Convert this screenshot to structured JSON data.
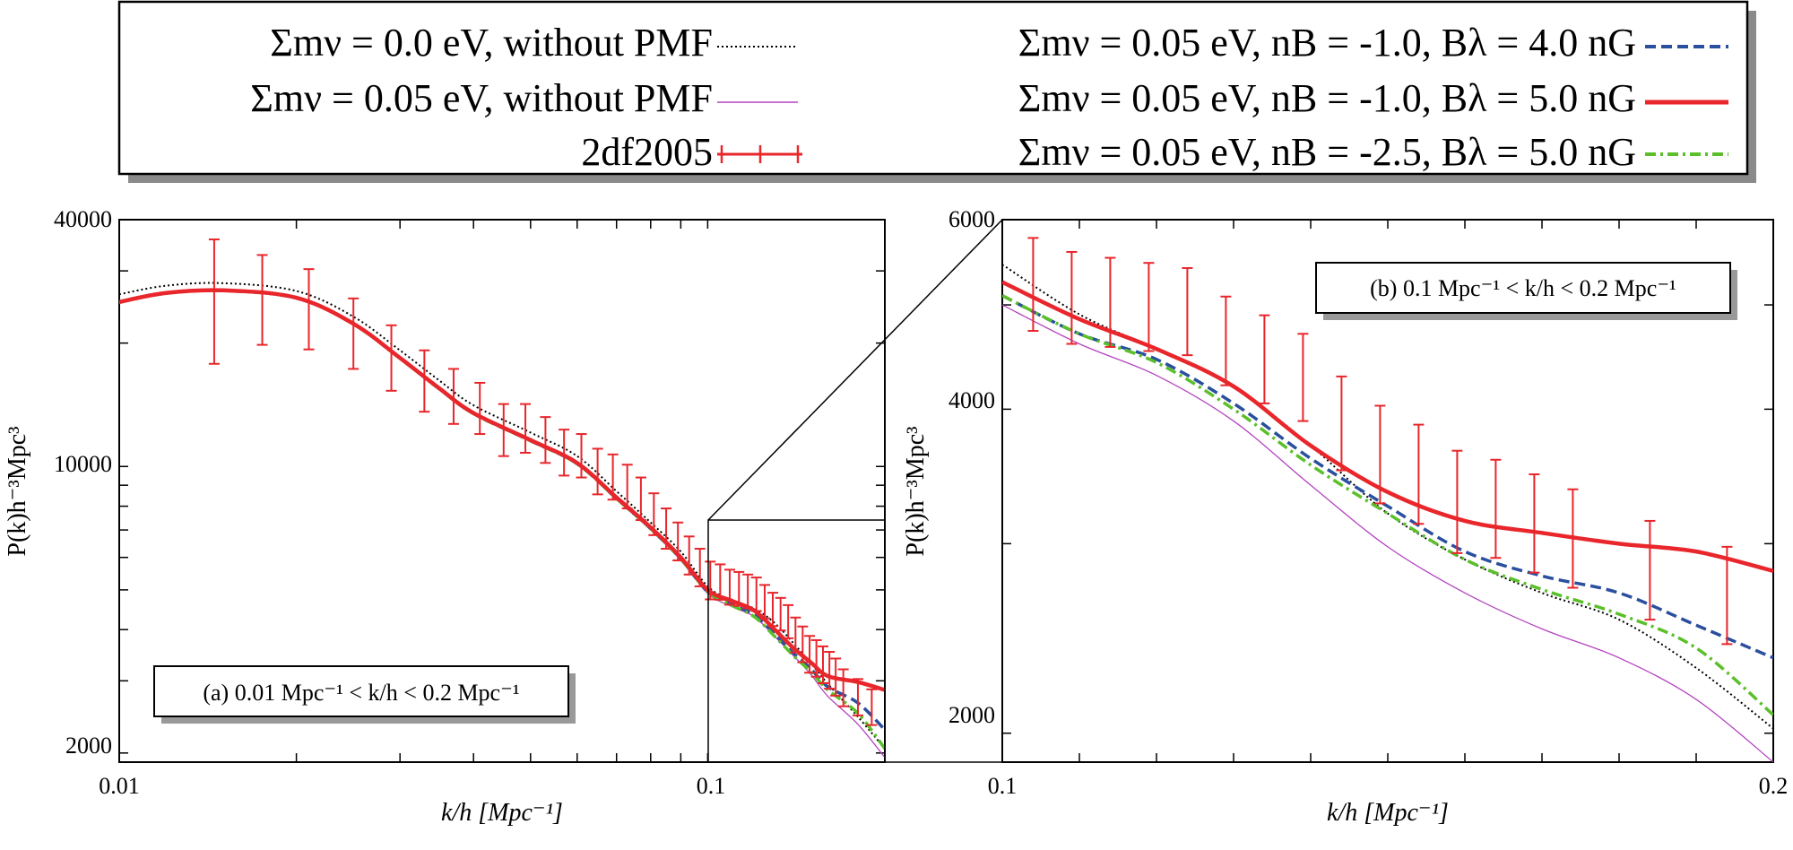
{
  "legend": {
    "placement": "top",
    "entries": [
      {
        "label": "Σmν = 0.0 eV, without PMF",
        "color": "#000000",
        "style": "dotted"
      },
      {
        "label": "Σmν = 0.05 eV, without PMF",
        "color": "#b444c0",
        "style": "thin-solid"
      },
      {
        "label": "2df2005",
        "color": "#e8262b",
        "style": "errorbar"
      },
      {
        "label": "Σmν = 0.05 eV, nB = -1.0, Bλ = 4.0 nG",
        "color": "#2a4f9e",
        "style": "dashed"
      },
      {
        "label": "Σmν = 0.05 eV, nB = -1.0, Bλ = 5.0 nG",
        "color": "#e8262b",
        "style": "thick-solid"
      },
      {
        "label": "Σmν = 0.05 eV, nB = -2.5, Bλ = 5.0 nG",
        "color": "#5bbf2a",
        "style": "dash-dot"
      }
    ]
  },
  "panels": [
    {
      "annotation": "(a) 0.01 Mpc⁻¹ < k/h < 0.2 Mpc⁻¹",
      "xlabel": "k/h [Mpc⁻¹]",
      "ylabel": "P(k)h⁻³Mpc³",
      "x_ticks": [
        "0.01",
        "0.1"
      ],
      "y_ticks": [
        "40000",
        "10000",
        "2000"
      ]
    },
    {
      "annotation": "(b) 0.1 Mpc⁻¹ < k/h < 0.2 Mpc⁻¹",
      "xlabel": "k/h [Mpc⁻¹]",
      "ylabel": "P(k)h⁻³Mpc³",
      "x_ticks": [
        "0.1",
        "0.2"
      ],
      "y_ticks": [
        "6000",
        "4000",
        "2000"
      ]
    }
  ],
  "chart_data": [
    {
      "type": "line",
      "xscale": "log",
      "yscale": "log",
      "xlim": [
        0.01,
        0.2
      ],
      "ylim": [
        1900,
        40000
      ],
      "series": [
        {
          "name": "Σmν = 0.0 eV, without PMF",
          "color": "#000000",
          "x": [
            0.01,
            0.012,
            0.015,
            0.02,
            0.025,
            0.03,
            0.035,
            0.04,
            0.05,
            0.06,
            0.07,
            0.08,
            0.09,
            0.1,
            0.11,
            0.12,
            0.13,
            0.14,
            0.15,
            0.16,
            0.18,
            0.2
          ],
          "y": [
            26300,
            27600,
            28000,
            26800,
            23200,
            19200,
            16200,
            14100,
            12100,
            10600,
            8700,
            7300,
            6200,
            5100,
            4700,
            4500,
            4150,
            3700,
            3300,
            2950,
            2450,
            2050
          ]
        },
        {
          "name": "Σmν = 0.05 eV, without PMF",
          "color": "#b444c0",
          "x": [
            0.01,
            0.012,
            0.015,
            0.02,
            0.025,
            0.03,
            0.035,
            0.04,
            0.05,
            0.06,
            0.07,
            0.08,
            0.09,
            0.1,
            0.11,
            0.12,
            0.13,
            0.14,
            0.15,
            0.16,
            0.18,
            0.2
          ],
          "y": [
            25100,
            26400,
            26800,
            25700,
            22200,
            18300,
            15400,
            13400,
            11500,
            10100,
            8300,
            7000,
            5900,
            4900,
            4550,
            4300,
            3850,
            3450,
            3100,
            2750,
            2350,
            1950
          ]
        },
        {
          "name": "Σmν = 0.05 eV, nB = -1.0, Bλ = 4.0 nG",
          "color": "#2a4f9e",
          "x": [
            0.01,
            0.012,
            0.015,
            0.02,
            0.025,
            0.03,
            0.035,
            0.04,
            0.05,
            0.06,
            0.07,
            0.08,
            0.09,
            0.1,
            0.11,
            0.12,
            0.13,
            0.14,
            0.15,
            0.16,
            0.18,
            0.2
          ],
          "y": [
            25150,
            26450,
            26850,
            25750,
            22250,
            18350,
            15450,
            13450,
            11550,
            10150,
            8350,
            7050,
            5950,
            4950,
            4600,
            4350,
            3900,
            3500,
            3200,
            2900,
            2650,
            2280
          ]
        },
        {
          "name": "Σmν = 0.05 eV, nB = -1.0, Bλ = 5.0 nG",
          "color": "#e8262b",
          "x": [
            0.01,
            0.012,
            0.015,
            0.02,
            0.025,
            0.03,
            0.035,
            0.04,
            0.05,
            0.06,
            0.07,
            0.08,
            0.09,
            0.1,
            0.11,
            0.12,
            0.13,
            0.14,
            0.15,
            0.16,
            0.18,
            0.2
          ],
          "y": [
            25200,
            26500,
            26900,
            25800,
            22300,
            18400,
            15500,
            13500,
            11600,
            10200,
            8400,
            7100,
            6000,
            5000,
            4700,
            4450,
            4000,
            3600,
            3320,
            3080,
            2980,
            2850
          ]
        },
        {
          "name": "Σmν = 0.05 eV, nB = -2.5, Bλ = 5.0 nG",
          "color": "#5bbf2a",
          "x": [
            0.01,
            0.012,
            0.015,
            0.02,
            0.025,
            0.03,
            0.035,
            0.04,
            0.05,
            0.06,
            0.07,
            0.08,
            0.09,
            0.1,
            0.11,
            0.12,
            0.13,
            0.14,
            0.15,
            0.16,
            0.18,
            0.2
          ],
          "y": [
            25150,
            26450,
            26850,
            25750,
            22250,
            18350,
            15450,
            13450,
            11550,
            10150,
            8350,
            7050,
            5950,
            4950,
            4580,
            4300,
            3850,
            3450,
            3150,
            2850,
            2500,
            2050
          ]
        },
        {
          "name": "2df2005",
          "color": "#e8262b",
          "type": "errorbar",
          "x": [
            0.0145,
            0.0175,
            0.021,
            0.025,
            0.029,
            0.033,
            0.037,
            0.041,
            0.045,
            0.049,
            0.053,
            0.057,
            0.061,
            0.065,
            0.069,
            0.073,
            0.077,
            0.081,
            0.085,
            0.089,
            0.093,
            0.097,
            0.101,
            0.105,
            0.109,
            0.113,
            0.117,
            0.121,
            0.125,
            0.129,
            0.133,
            0.137,
            0.141,
            0.145,
            0.149,
            0.153,
            0.157,
            0.161,
            0.165,
            0.17,
            0.18,
            0.19
          ],
          "y": [
            26800,
            26300,
            24800,
            21500,
            18700,
            16400,
            15000,
            14000,
            12400,
            12500,
            11700,
            10900,
            10700,
            9800,
            9500,
            9000,
            8400,
            7700,
            7100,
            6600,
            6100,
            5700,
            5300,
            5250,
            5100,
            5050,
            4980,
            4900,
            4700,
            4500,
            4380,
            4200,
            3900,
            3700,
            3500,
            3420,
            3300,
            3200,
            3080,
            2900,
            2750,
            2600
          ],
          "yerr": [
            9000,
            6500,
            5500,
            4200,
            3400,
            2800,
            2300,
            2000,
            1800,
            1700,
            1500,
            1400,
            1300,
            1250,
            1200,
            1100,
            1000,
            900,
            800,
            700,
            650,
            600,
            560,
            520,
            500,
            480,
            470,
            460,
            440,
            420,
            400,
            390,
            380,
            370,
            360,
            350,
            340,
            330,
            320,
            300,
            280,
            260
          ]
        }
      ]
    },
    {
      "type": "line",
      "xscale": "linear",
      "yscale": "log",
      "xlim": [
        0.1,
        0.2
      ],
      "ylim": [
        1880,
        6000
      ],
      "series": [
        {
          "name": "Σmν = 0.0 eV, without PMF",
          "color": "#000000",
          "x": [
            0.1,
            0.11,
            0.12,
            0.13,
            0.14,
            0.15,
            0.16,
            0.17,
            0.18,
            0.19,
            0.2
          ],
          "y": [
            5450,
            4900,
            4550,
            4200,
            3700,
            3200,
            2900,
            2700,
            2550,
            2300,
            2020
          ]
        },
        {
          "name": "Σmν = 0.05 eV, without PMF",
          "color": "#b444c0",
          "x": [
            0.1,
            0.11,
            0.12,
            0.13,
            0.14,
            0.15,
            0.16,
            0.17,
            0.18,
            0.19,
            0.2
          ],
          "y": [
            5000,
            4600,
            4300,
            3900,
            3400,
            2980,
            2700,
            2500,
            2350,
            2150,
            1880
          ]
        },
        {
          "name": "Σmν = 0.05 eV, nB = -1.0, Bλ = 4.0 nG",
          "color": "#2a4f9e",
          "x": [
            0.1,
            0.11,
            0.12,
            0.13,
            0.14,
            0.15,
            0.16,
            0.17,
            0.18,
            0.19,
            0.2
          ],
          "y": [
            5100,
            4700,
            4450,
            4050,
            3600,
            3250,
            2950,
            2800,
            2700,
            2520,
            2350
          ]
        },
        {
          "name": "Σmν = 0.05 eV, nB = -1.0, Bλ = 5.0 nG",
          "color": "#e8262b",
          "x": [
            0.1,
            0.11,
            0.12,
            0.13,
            0.14,
            0.15,
            0.16,
            0.17,
            0.18,
            0.19,
            0.2
          ],
          "y": [
            5250,
            4850,
            4550,
            4200,
            3700,
            3350,
            3150,
            3070,
            3000,
            2950,
            2830
          ]
        },
        {
          "name": "Σmν = 0.05 eV, nB = -2.5, Bλ = 5.0 nG",
          "color": "#5bbf2a",
          "x": [
            0.1,
            0.11,
            0.12,
            0.13,
            0.14,
            0.15,
            0.16,
            0.17,
            0.18,
            0.19,
            0.2
          ],
          "y": [
            5100,
            4700,
            4420,
            4000,
            3550,
            3200,
            2900,
            2720,
            2580,
            2400,
            2080
          ]
        },
        {
          "name": "2df2005",
          "color": "#e8262b",
          "type": "errorbar",
          "x": [
            0.104,
            0.109,
            0.114,
            0.119,
            0.124,
            0.129,
            0.134,
            0.139,
            0.144,
            0.149,
            0.154,
            0.159,
            0.164,
            0.169,
            0.174,
            0.184,
            0.194
          ],
          "y": [
            5250,
            5100,
            5050,
            5000,
            4950,
            4650,
            4470,
            4300,
            3900,
            3650,
            3500,
            3300,
            3250,
            3150,
            3050,
            2850,
            2700
          ],
          "yerr": [
            520,
            500,
            480,
            470,
            460,
            440,
            420,
            400,
            390,
            380,
            370,
            360,
            340,
            330,
            320,
            300,
            280
          ]
        }
      ]
    }
  ]
}
